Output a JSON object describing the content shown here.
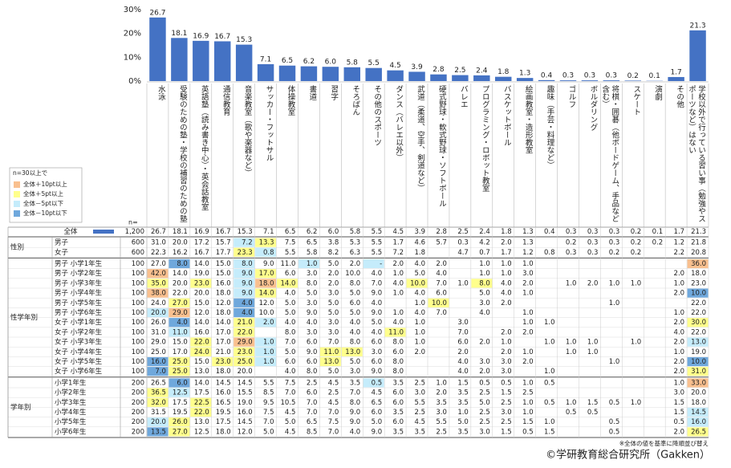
{
  "chart_data": {
    "type": "bar",
    "categories": [
      "水泳",
      "受験のための塾・学校の補習のための塾",
      "英語塾（読み書き中心）・英会話教室",
      "通信教育",
      "音楽教室（歌や楽器など）",
      "サッカー・フットサル",
      "体操教室",
      "書道",
      "習字",
      "そろばん",
      "その他のスポーツ",
      "ダンス（バレエ以外）",
      "武道（柔道、空手、剣道など）",
      "硬式野球・軟式野球・ソフトボール",
      "バレエ",
      "プログラミング・ロボット教室",
      "バスケットボール",
      "絵画教室・造形教室",
      "趣味（手芸・料理など）",
      "ゴルフ",
      "ボルダリング",
      "将棋・囲碁（他ボードゲーム、手品など含む）",
      "スケート",
      "演劇",
      "その他",
      "学校以外で行っている習い事（勉強やスポーツなど）はない"
    ],
    "values": [
      26.7,
      18.1,
      16.9,
      16.7,
      15.3,
      7.1,
      6.5,
      6.2,
      6.0,
      5.8,
      5.5,
      4.5,
      3.9,
      2.8,
      2.5,
      2.4,
      1.8,
      1.3,
      0.4,
      0.3,
      0.3,
      0.3,
      0.2,
      0.1,
      1.7,
      21.3
    ],
    "value_labels": [
      "26.7",
      "18.1",
      "16.9",
      "16.7",
      "15.3",
      "7.1",
      "6.5",
      "6.2",
      "6.0",
      "5.8",
      "5.5",
      "4.5",
      "3.9",
      "2.8",
      "2.5",
      "2.4",
      "1.8",
      "1.3",
      "0.4",
      "0.3",
      "0.3",
      "0.3",
      "0.2",
      "0.1",
      "1.7",
      "21.3"
    ],
    "color": "#4472c4",
    "ylim": [
      0,
      30
    ],
    "yticks": [
      {
        "value": 0,
        "label": "0%"
      },
      {
        "value": 10,
        "label": "10%"
      },
      {
        "value": 20,
        "label": "20%"
      },
      {
        "value": 30,
        "label": "30%"
      }
    ]
  },
  "legend": {
    "title": "n=30以上で",
    "items": [
      {
        "label": "全体＋10pt以上",
        "color": "#f9c08f"
      },
      {
        "label": "全体＋5pt以上",
        "color": "#ffff8c"
      },
      {
        "label": "全体－5pt以下",
        "color": "#c5ecfb"
      },
      {
        "label": "全体－10pt以下",
        "color": "#6fa8dc"
      }
    ]
  },
  "table": {
    "n_header": "n=",
    "total": {
      "label": "全体",
      "n": "1,200"
    },
    "groups": [
      {
        "label": "性別",
        "rows": [
          {
            "label": "男子",
            "n": "600",
            "cells": [
              "31.0",
              "20.0",
              "17.2",
              "15.7",
              "7.2",
              "13.3",
              "7.5",
              "6.5",
              "3.8",
              "5.3",
              "5.5",
              "1.7",
              "4.6",
              "5.7",
              "0.3",
              "4.2",
              "2.0",
              "1.3",
              null,
              "0.2",
              "0.3",
              "0.3",
              "0.2",
              "0.2",
              "1.2",
              "21.8"
            ]
          },
          {
            "label": "女子",
            "n": "600",
            "cells": [
              "22.3",
              "16.2",
              "16.7",
              "17.7",
              "23.3",
              "0.8",
              "5.5",
              "5.8",
              "8.2",
              "6.3",
              "5.5",
              "7.2",
              "1.8",
              null,
              "4.7",
              "0.7",
              "1.7",
              "1.2",
              "0.8",
              "0.3",
              "0.3",
              "0.2",
              "0.2",
              null,
              "2.2",
              "20.8"
            ]
          }
        ]
      },
      {
        "label": "性学年別",
        "rows": [
          {
            "label": "男子 小学1年生",
            "n": "100",
            "cells": [
              "27.0",
              "8.0",
              "14.0",
              "15.0",
              "8.0",
              "9.0",
              "11.0",
              "1.0",
              "5.0",
              "2.0",
              "-",
              "2.0",
              "4.0",
              "2.0",
              null,
              "1.0",
              "1.0",
              "1.0",
              null,
              null,
              null,
              null,
              null,
              null,
              null,
              "36.0"
            ]
          },
          {
            "label": "男子 小学2年生",
            "n": "100",
            "cells": [
              "42.0",
              "14.0",
              "19.0",
              "15.0",
              "9.0",
              "17.0",
              "6.0",
              "3.0",
              "2.0",
              "10.0",
              "4.0",
              "1.0",
              "5.0",
              "4.0",
              null,
              "1.0",
              "1.0",
              "3.0",
              null,
              null,
              null,
              null,
              null,
              null,
              "2.0",
              "18.0"
            ]
          },
          {
            "label": "男子 小学3年生",
            "n": "100",
            "cells": [
              "35.0",
              "20.0",
              "23.0",
              "16.0",
              "9.0",
              "18.0",
              "14.0",
              "8.0",
              "2.0",
              "8.0",
              "7.0",
              "4.0",
              "10.0",
              "7.0",
              "1.0",
              "8.0",
              "4.0",
              "2.0",
              null,
              "1.0",
              "2.0",
              "1.0",
              "1.0",
              null,
              "1.0",
              "23.0"
            ]
          },
          {
            "label": "男子 小学4年生",
            "n": "100",
            "cells": [
              "38.0",
              "22.0",
              "20.0",
              "18.0",
              "9.0",
              "14.0",
              "4.0",
              "5.0",
              "3.0",
              "5.0",
              "9.0",
              "1.0",
              "4.0",
              "6.0",
              null,
              "5.0",
              "4.0",
              "1.0",
              null,
              null,
              null,
              null,
              null,
              null,
              "2.0",
              "10.0"
            ]
          },
          {
            "label": "男子 小学5年生",
            "n": "100",
            "cells": [
              "24.0",
              "27.0",
              "15.0",
              "12.0",
              "4.0",
              "12.0",
              "5.0",
              "3.0",
              "5.0",
              "6.0",
              "4.0",
              null,
              "1.0",
              "10.0",
              null,
              "3.0",
              "2.0",
              null,
              null,
              null,
              null,
              "1.0",
              null,
              null,
              null,
              "22.0"
            ]
          },
          {
            "label": "男子 小学6年生",
            "n": "100",
            "cells": [
              "20.0",
              "29.0",
              "12.0",
              "18.0",
              "4.0",
              "10.0",
              "5.0",
              "9.0",
              "5.0",
              "5.0",
              "9.0",
              "1.0",
              "4.0",
              "7.0",
              null,
              "4.0",
              null,
              "1.0",
              null,
              null,
              null,
              null,
              null,
              null,
              "1.0",
              "22.0"
            ]
          },
          {
            "label": "女子 小学1年生",
            "n": "100",
            "cells": [
              "26.0",
              "4.0",
              "14.0",
              "14.0",
              "21.0",
              "2.0",
              "4.0",
              "4.0",
              "3.0",
              "4.0",
              "5.0",
              "4.0",
              "1.0",
              null,
              "3.0",
              null,
              null,
              "1.0",
              "1.0",
              null,
              null,
              null,
              null,
              null,
              "2.0",
              "30.0"
            ]
          },
          {
            "label": "女子 小学2年生",
            "n": "100",
            "cells": [
              "31.0",
              "11.0",
              "16.0",
              "17.0",
              "22.0",
              null,
              "8.0",
              "3.0",
              "3.0",
              "4.0",
              "4.0",
              "11.0",
              "1.0",
              null,
              "7.0",
              null,
              "2.0",
              "2.0",
              null,
              null,
              null,
              null,
              null,
              null,
              "4.0",
              "22.0"
            ]
          },
          {
            "label": "女子 小学3年生",
            "n": "100",
            "cells": [
              "29.0",
              "15.0",
              "22.0",
              "17.0",
              "29.0",
              "1.0",
              "7.0",
              "6.0",
              "7.0",
              "8.0",
              "6.0",
              "8.0",
              "1.0",
              null,
              "6.0",
              "2.0",
              "1.0",
              null,
              "1.0",
              "1.0",
              "1.0",
              null,
              "1.0",
              null,
              "2.0",
              "13.0"
            ]
          },
          {
            "label": "女子 小学4年生",
            "n": "100",
            "cells": [
              "25.0",
              "17.0",
              "24.0",
              "21.0",
              "23.0",
              "1.0",
              "5.0",
              "9.0",
              "11.0",
              "13.0",
              "3.0",
              "6.0",
              "2.0",
              null,
              "2.0",
              null,
              "2.0",
              "1.0",
              null,
              "1.0",
              "1.0",
              null,
              null,
              null,
              "1.0",
              "19.0"
            ]
          },
          {
            "label": "女子 小学5年生",
            "n": "100",
            "cells": [
              "16.0",
              "25.0",
              "15.0",
              "23.0",
              "25.0",
              "1.0",
              "6.0",
              "6.0",
              "13.0",
              "5.0",
              "6.0",
              "8.0",
              null,
              null,
              "4.0",
              "3.0",
              "3.0",
              "2.0",
              null,
              null,
              null,
              "1.0",
              null,
              null,
              "2.0",
              "10.0"
            ]
          },
          {
            "label": "女子 小学6年生",
            "n": "100",
            "cells": [
              "7.0",
              "25.0",
              "13.0",
              "18.0",
              "20.0",
              null,
              "4.0",
              "8.0",
              "5.0",
              "3.0",
              "9.0",
              "8.0",
              null,
              null,
              "4.0",
              "2.0",
              "3.0",
              null,
              "1.0",
              null,
              null,
              null,
              null,
              null,
              "2.0",
              "31.0"
            ]
          }
        ]
      },
      {
        "label": "学年別",
        "rows": [
          {
            "label": "小学1年生",
            "n": "200",
            "cells": [
              "26.5",
              "6.0",
              "14.0",
              "14.5",
              "14.5",
              "5.5",
              "7.5",
              "2.5",
              "4.5",
              "3.5",
              "0.5",
              "3.5",
              "2.5",
              "1.0",
              "1.5",
              "0.5",
              "0.5",
              "1.0",
              "0.5",
              null,
              null,
              null,
              null,
              null,
              "1.0",
              "33.0"
            ]
          },
          {
            "label": "小学2年生",
            "n": "200",
            "cells": [
              "36.5",
              "12.5",
              "17.5",
              "16.0",
              "15.5",
              "8.5",
              "7.0",
              "6.0",
              "2.5",
              "7.0",
              "4.5",
              "6.0",
              "3.0",
              "2.0",
              "3.5",
              "2.5",
              "1.5",
              "2.5",
              null,
              null,
              null,
              null,
              null,
              null,
              "3.0",
              "20.0"
            ]
          },
          {
            "label": "小学3年生",
            "n": "200",
            "cells": [
              "32.0",
              "17.5",
              "22.5",
              "16.5",
              "19.0",
              "9.5",
              "10.5",
              "7.0",
              "4.5",
              "8.0",
              "6.5",
              "6.0",
              "5.5",
              "3.5",
              "3.5",
              "5.0",
              "2.5",
              "1.0",
              "0.5",
              "1.0",
              "1.5",
              "0.5",
              "1.0",
              null,
              "1.5",
              "18.0"
            ]
          },
          {
            "label": "小学4年生",
            "n": "200",
            "cells": [
              "31.5",
              "19.5",
              "22.0",
              "19.5",
              "16.0",
              "7.5",
              "4.5",
              "7.0",
              "7.0",
              "9.0",
              "6.0",
              "3.5",
              "2.5",
              "3.0",
              "1.0",
              "2.5",
              "3.0",
              "1.0",
              null,
              "0.5",
              "0.5",
              null,
              null,
              null,
              "1.5",
              "14.5"
            ]
          },
          {
            "label": "小学5年生",
            "n": "200",
            "cells": [
              "20.0",
              "26.0",
              "13.0",
              "17.5",
              "14.5",
              "7.0",
              "5.0",
              "6.5",
              "7.5",
              "9.0",
              "5.0",
              "6.0",
              "4.5",
              "5.5",
              "5.0",
              "2.5",
              "2.5",
              "1.5",
              "1.0",
              null,
              null,
              "0.5",
              null,
              null,
              "0.5",
              "16.0"
            ]
          },
          {
            "label": "小学6年生",
            "n": "200",
            "cells": [
              "13.5",
              "27.0",
              "12.5",
              "18.0",
              "12.0",
              "5.0",
              "4.5",
              "8.5",
              "7.0",
              "4.0",
              "9.0",
              "3.5",
              "3.5",
              "2.5",
              "3.5",
              "3.0",
              "1.5",
              "0.5",
              "1.5",
              null,
              null,
              "0.5",
              null,
              null,
              "2.0",
              "26.5"
            ]
          }
        ]
      }
    ]
  },
  "footer": {
    "note": "※全体の値を基準に降順並び替え",
    "copyright": "©学研教育総合研究所（Gakken）"
  }
}
